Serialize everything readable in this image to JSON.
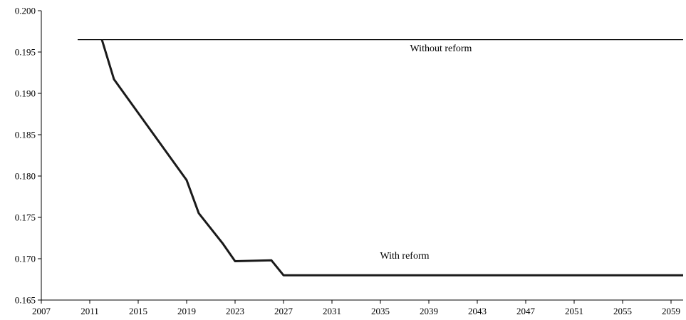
{
  "chart_data": {
    "type": "line",
    "title": "",
    "xlabel": "",
    "ylabel": "",
    "xlim": [
      2007,
      2060
    ],
    "ylim": [
      0.165,
      0.2
    ],
    "x_ticks": [
      2007,
      2011,
      2015,
      2019,
      2023,
      2027,
      2031,
      2035,
      2039,
      2043,
      2047,
      2051,
      2055,
      2059
    ],
    "y_ticks": [
      "0.165",
      "0.170",
      "0.175",
      "0.180",
      "0.185",
      "0.190",
      "0.195",
      "0.200"
    ],
    "grid": false,
    "legend": "none",
    "series": [
      {
        "name": "Without reform",
        "x": [
          2010,
          2060
        ],
        "values": [
          0.1965,
          0.1965
        ]
      },
      {
        "name": "With reform",
        "x": [
          2012,
          2013,
          2019,
          2020,
          2022,
          2023,
          2026,
          2027,
          2060
        ],
        "values": [
          0.1965,
          0.1917,
          0.1795,
          0.1755,
          0.1718,
          0.1697,
          0.1698,
          0.168,
          0.168
        ]
      }
    ],
    "annotations": [
      {
        "text": "Without reform",
        "x": 2040,
        "y": 0.1951
      },
      {
        "text": "With reform",
        "x": 2037,
        "y": 0.17
      }
    ]
  }
}
